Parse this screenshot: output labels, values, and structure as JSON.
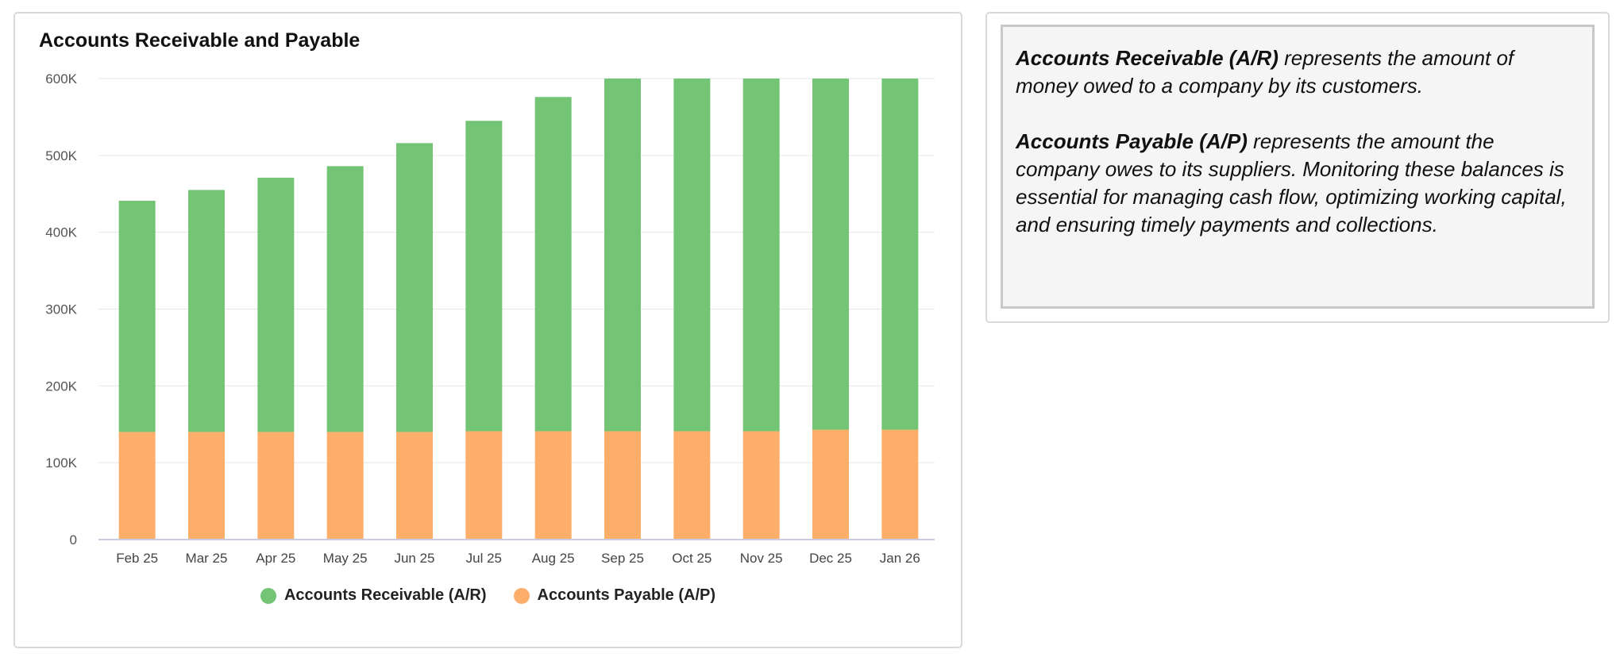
{
  "chart_card": {
    "title": "Accounts Receivable and Payable"
  },
  "info": {
    "ar_term": "Accounts Receivable (A/R)",
    "ar_text": " represents the amount of money owed to a company by its customers.",
    "ap_term": "Accounts Payable (A/P)",
    "ap_text": " represents the amount the company owes to its suppliers. Monitoring these balances is essential for managing cash flow, optimizing working capital, and ensuring timely payments and collections."
  },
  "chart_data": {
    "type": "bar",
    "stacked": true,
    "title": "Accounts Receivable and Payable",
    "categories": [
      "Feb 25",
      "Mar 25",
      "Apr 25",
      "May 25",
      "Jun 25",
      "Jul 25",
      "Aug 25",
      "Sep 25",
      "Oct 25",
      "Nov 25",
      "Dec 25",
      "Jan 26"
    ],
    "series": [
      {
        "name": "Accounts Payable (A/P)",
        "color": "#fdae6b",
        "values": [
          140000,
          140000,
          140000,
          140000,
          140000,
          141000,
          141000,
          141000,
          141000,
          141000,
          143000,
          143000
        ]
      },
      {
        "name": "Accounts Receivable (A/R)",
        "color": "#74c476",
        "values": [
          301000,
          315000,
          331000,
          346000,
          376000,
          404000,
          435000,
          459000,
          459000,
          459000,
          457000,
          457000
        ]
      }
    ],
    "ylim": [
      0,
      600000
    ],
    "yticks": [
      0,
      100000,
      200000,
      300000,
      400000,
      500000,
      600000
    ],
    "ytick_labels": [
      "0",
      "100K",
      "200K",
      "300K",
      "400K",
      "500K",
      "600K"
    ],
    "grid": true,
    "legend_position": "bottom",
    "legend_order": [
      "Accounts Receivable (A/R)",
      "Accounts Payable (A/P)"
    ]
  }
}
